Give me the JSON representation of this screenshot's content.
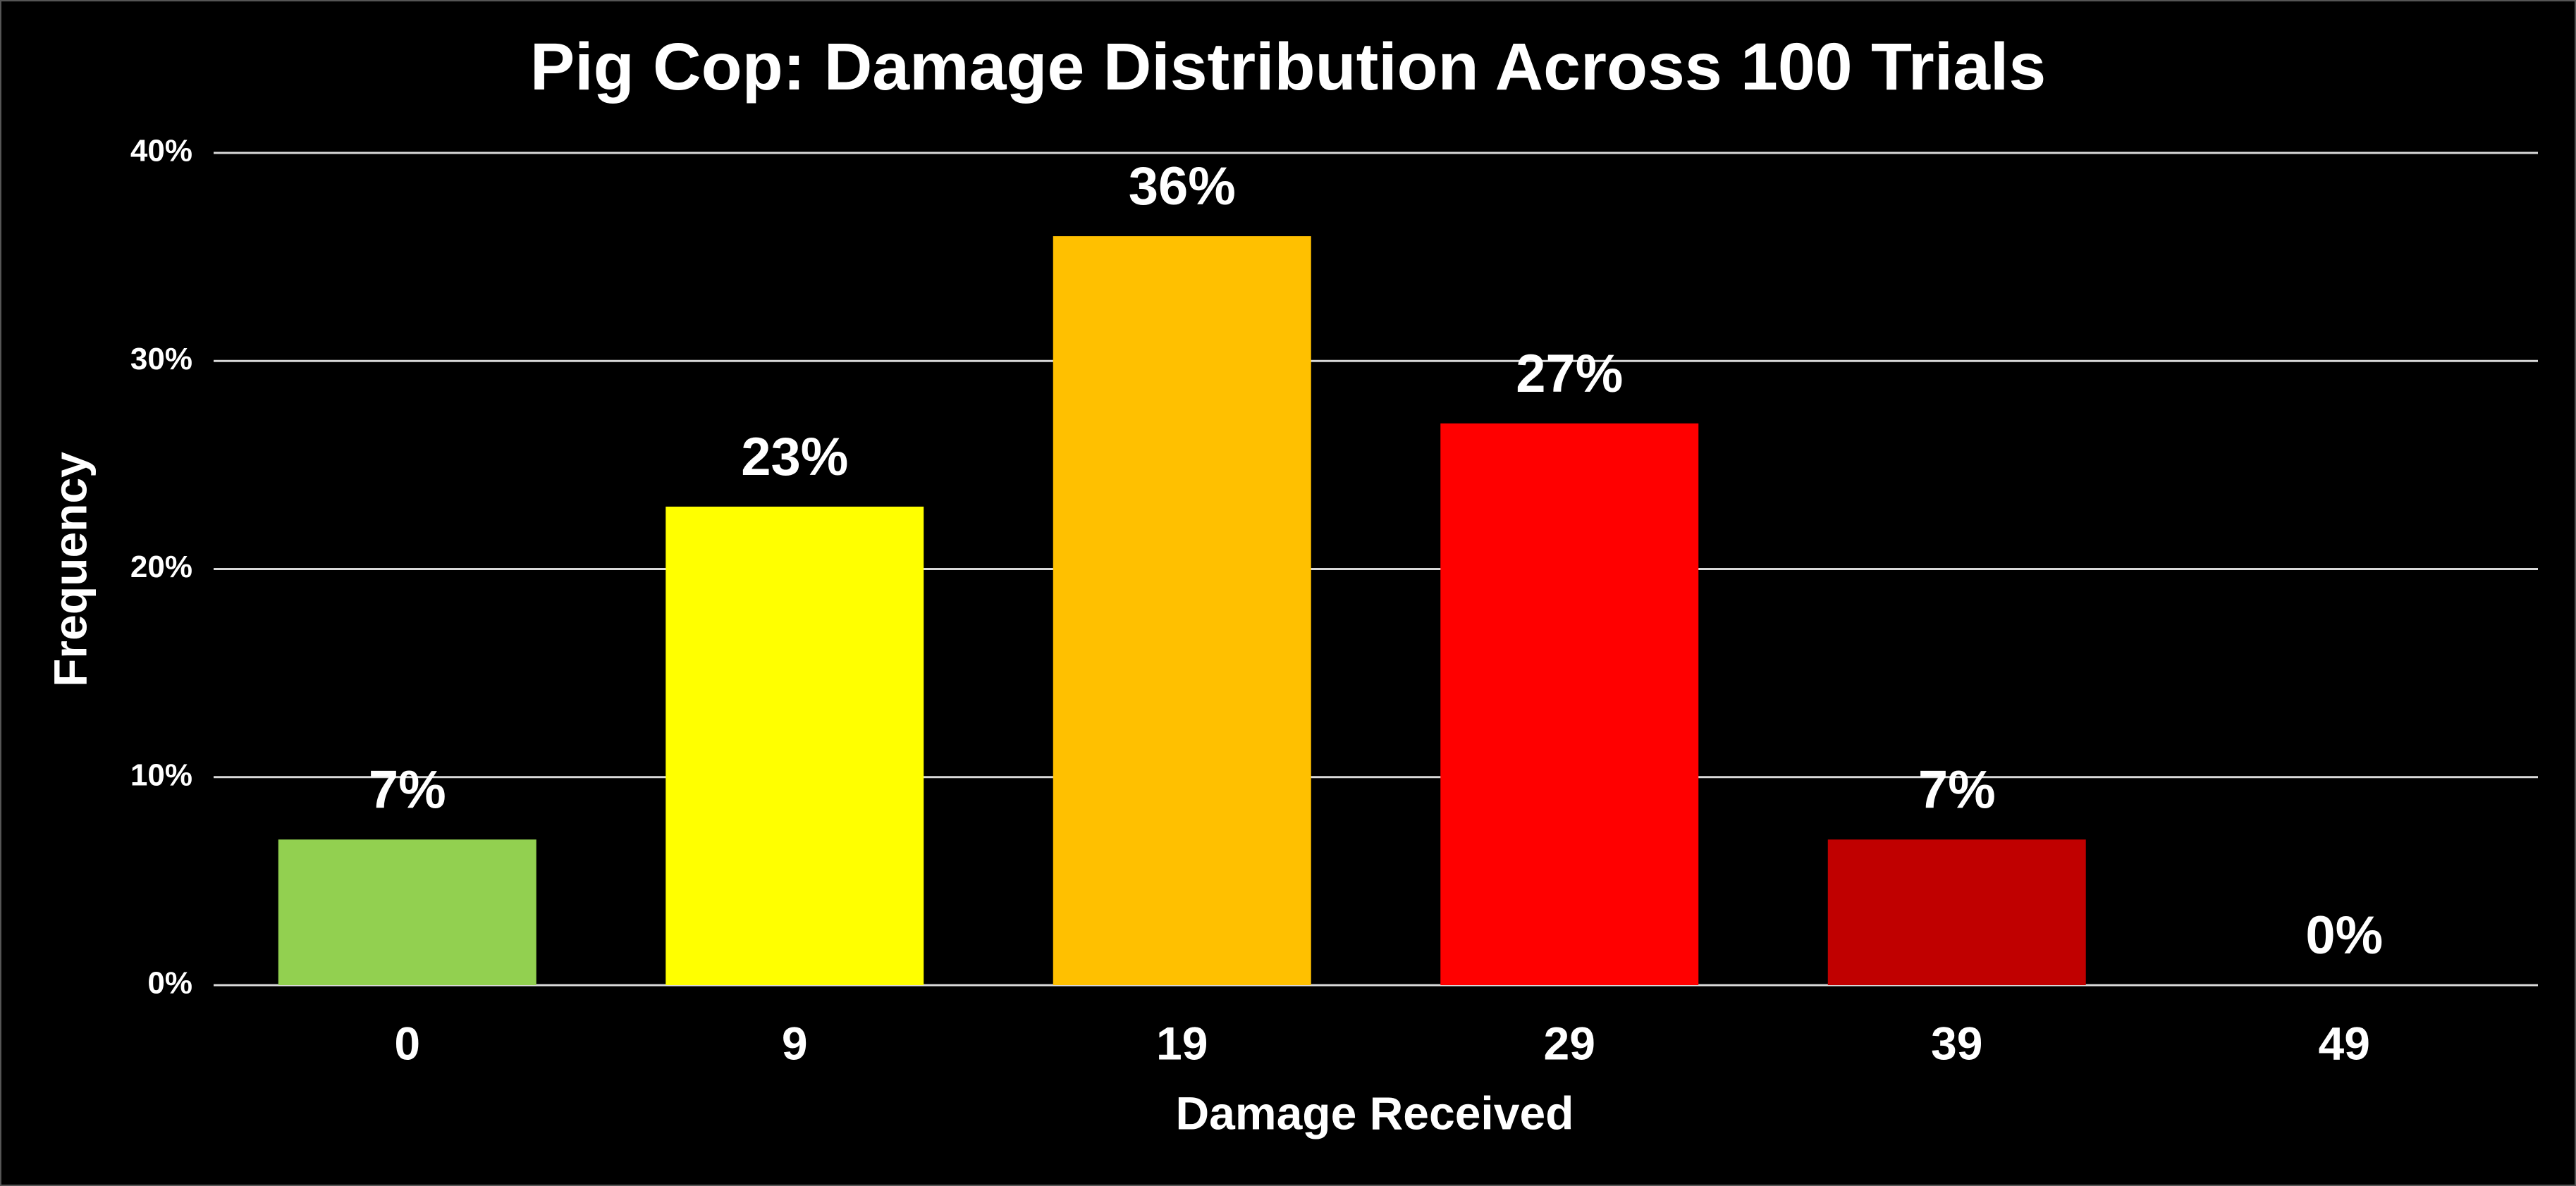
{
  "chart_data": {
    "type": "bar",
    "title": "Pig Cop: Damage Distribution Across 100 Trials",
    "x_label": "Damage Received",
    "y_label": "Frequency",
    "categories": [
      "0",
      "9",
      "19",
      "29",
      "39",
      "49"
    ],
    "values": [
      7,
      23,
      36,
      27,
      7,
      0
    ],
    "value_labels": [
      "7%",
      "23%",
      "36%",
      "27%",
      "7%",
      "0%"
    ],
    "colors": [
      "#92d050",
      "#ffff00",
      "#ffc000",
      "#ff0000",
      "#c00000",
      "#c00000"
    ],
    "ylim": [
      0,
      40
    ],
    "yticks": [
      {
        "value": 0,
        "label": "0%"
      },
      {
        "value": 10,
        "label": "10%"
      },
      {
        "value": 20,
        "label": "20%"
      },
      {
        "value": 30,
        "label": "30%"
      },
      {
        "value": 40,
        "label": "40%"
      }
    ],
    "grid": true
  }
}
